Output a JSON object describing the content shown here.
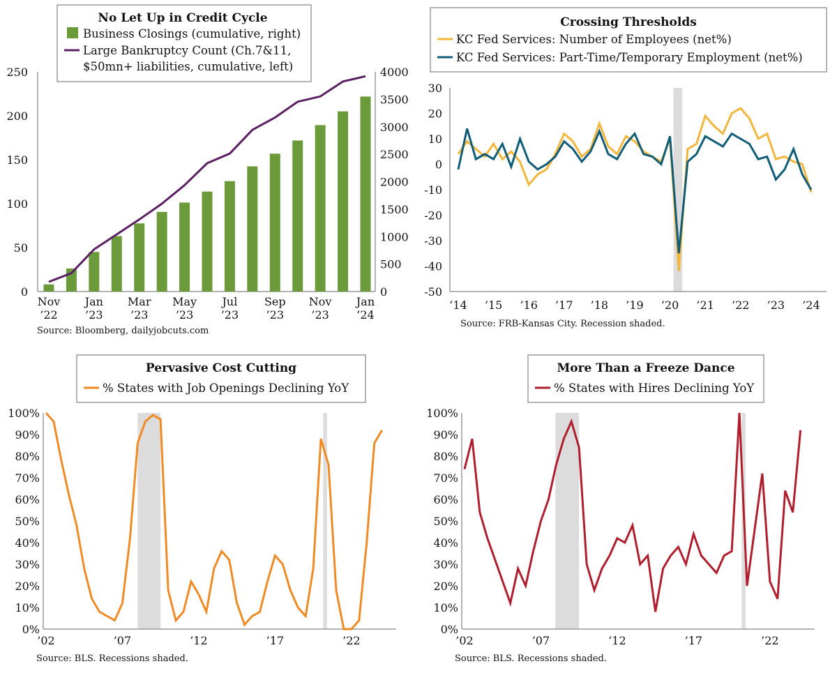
{
  "colors": {
    "green_bar": "#6a9a3a",
    "purple_line": "#5b1f63",
    "gold_line": "#f2b63c",
    "teal_line": "#0e5c78",
    "orange_line": "#f08a24",
    "crimson_line": "#b01e2e",
    "recession": "#dcdcdc",
    "axis": "#9a9a9a"
  },
  "charts": [
    {
      "title": "No Let Up in Credit Cycle",
      "source": "Source: Bloomberg, dailyjobcuts.com",
      "legend": [
        "Business Closings (cumulative, right)",
        "Large Bankruptcy Count (Ch.7&11,",
        "$50mn+ liabilities, cumulative, left)"
      ],
      "x_ticks_top": [
        "Nov",
        "Jan",
        "Mar",
        "May",
        "Jul",
        "Sep",
        "Nov",
        "Jan"
      ],
      "x_ticks_bottom": [
        "’22",
        "’23",
        "’23",
        "’23",
        "’23",
        "’23",
        "’23",
        "’24"
      ],
      "y_left_ticks": [
        "0",
        "50",
        "100",
        "150",
        "200",
        "250"
      ],
      "y_right_ticks": [
        "0",
        "500",
        "1000",
        "1500",
        "2000",
        "2500",
        "3000",
        "3500",
        "4000"
      ]
    },
    {
      "title": "Crossing Thresholds",
      "source": "Source: FRB-Kansas City. Recession shaded.",
      "legend": [
        "KC Fed Services: Number of Employees (net%)",
        "KC Fed Services: Part-Time/Temporary Employment (net%)"
      ],
      "x_ticks": [
        "’14",
        "’15",
        "’16",
        "’17",
        "’18",
        "’19",
        "’20",
        "’21",
        "’22",
        "’23",
        "’24"
      ],
      "y_ticks": [
        "30",
        "20",
        "10",
        "0",
        "-10",
        "-20",
        "-30",
        "-40",
        "-50"
      ]
    },
    {
      "title": "Pervasive Cost Cutting",
      "source": "Source: BLS. Recessions shaded.",
      "legend": [
        "% States with Job Openings Declining YoY"
      ],
      "x_ticks": [
        "’02",
        "’07",
        "’12",
        "’17",
        "’22"
      ],
      "y_ticks": [
        "100%",
        "90%",
        "80%",
        "70%",
        "60%",
        "50%",
        "40%",
        "30%",
        "20%",
        "10%",
        "0%"
      ]
    },
    {
      "title": "More Than a Freeze Dance",
      "source": "Source: BLS. Recessions shaded.",
      "legend": [
        "% States with Hires Declining YoY"
      ],
      "x_ticks": [
        "’02",
        "’07",
        "’12",
        "’17",
        "’22"
      ],
      "y_ticks": [
        "100%",
        "90%",
        "80%",
        "70%",
        "60%",
        "50%",
        "40%",
        "30%",
        "20%",
        "10%",
        "0%"
      ]
    }
  ],
  "chart_data": [
    {
      "type": "bar",
      "title": "No Let Up in Credit Cycle",
      "categories": [
        "Nov ’22",
        "Dec ’22",
        "Jan ’23",
        "Feb ’23",
        "Mar ’23",
        "Apr ’23",
        "May ’23",
        "Jun ’23",
        "Jul ’23",
        "Aug ’23",
        "Sep ’23",
        "Oct ’23",
        "Nov ’23",
        "Dec ’23",
        "Jan ’24"
      ],
      "series": [
        {
          "name": "Business Closings (cumulative, right)",
          "axis": "right",
          "values": [
            130,
            420,
            720,
            1010,
            1240,
            1450,
            1620,
            1820,
            2010,
            2280,
            2510,
            2750,
            3030,
            3280,
            3550
          ]
        },
        {
          "name": "Large Bankruptcy Count (Ch.7&11, $50mn+ liabilities, cumulative, left)",
          "axis": "left",
          "values": [
            11,
            21,
            48,
            65,
            82,
            100,
            121,
            146,
            157,
            184,
            198,
            216,
            222,
            239,
            245
          ]
        }
      ],
      "ylim_left": [
        0,
        250
      ],
      "ylim_right": [
        0,
        4000
      ]
    },
    {
      "type": "line",
      "title": "Crossing Thresholds",
      "x": [
        "2014",
        "2014.25",
        "2014.5",
        "2014.75",
        "2015",
        "2015.25",
        "2015.5",
        "2015.75",
        "2016",
        "2016.25",
        "2016.5",
        "2016.75",
        "2017",
        "2017.25",
        "2017.5",
        "2017.75",
        "2018",
        "2018.25",
        "2018.5",
        "2018.75",
        "2019",
        "2019.25",
        "2019.5",
        "2019.75",
        "2020",
        "2020.25",
        "2020.5",
        "2020.75",
        "2021",
        "2021.25",
        "2021.5",
        "2021.75",
        "2022",
        "2022.25",
        "2022.5",
        "2022.75",
        "2023",
        "2023.25",
        "2023.5",
        "2023.75",
        "2024"
      ],
      "series": [
        {
          "name": "KC Fed Services: Number of Employees (net%)",
          "values": [
            4,
            9,
            6,
            3,
            8,
            2,
            5,
            1,
            -8,
            -4,
            -2,
            4,
            12,
            9,
            3,
            6,
            16,
            7,
            4,
            11,
            9,
            5,
            3,
            1,
            10,
            -42,
            6,
            8,
            19,
            15,
            12,
            20,
            22,
            18,
            10,
            12,
            2,
            3,
            1,
            0,
            -11
          ]
        },
        {
          "name": "KC Fed Services: Part-Time/Temporary Employment (net%)",
          "values": [
            -2,
            14,
            2,
            4,
            2,
            8,
            -1,
            10,
            1,
            -2,
            0,
            3,
            9,
            6,
            1,
            5,
            13,
            4,
            2,
            8,
            12,
            4,
            3,
            0,
            11,
            -35,
            1,
            4,
            11,
            9,
            7,
            12,
            10,
            8,
            2,
            3,
            -6,
            -2,
            6,
            -4,
            -10
          ]
        }
      ],
      "ylim": [
        -50,
        30
      ],
      "recessions": [
        [
          2020.1,
          2020.35
        ]
      ]
    },
    {
      "type": "line",
      "title": "Pervasive Cost Cutting",
      "x": [
        "2002",
        "2002.5",
        "2003",
        "2003.5",
        "2004",
        "2004.5",
        "2005",
        "2005.5",
        "2006",
        "2006.5",
        "2007",
        "2007.5",
        "2008",
        "2008.5",
        "2009",
        "2009.5",
        "2010",
        "2010.5",
        "2011",
        "2011.5",
        "2012",
        "2012.5",
        "2013",
        "2013.5",
        "2014",
        "2014.5",
        "2015",
        "2015.5",
        "2016",
        "2016.5",
        "2017",
        "2017.5",
        "2018",
        "2018.5",
        "2019",
        "2019.5",
        "2020",
        "2020.5",
        "2021",
        "2021.5",
        "2022",
        "2022.5",
        "2023",
        "2023.5",
        "2024"
      ],
      "series": [
        {
          "name": "% States with Job Openings Declining YoY",
          "values": [
            100,
            96,
            78,
            62,
            48,
            28,
            14,
            8,
            6,
            4,
            12,
            42,
            86,
            96,
            99,
            97,
            18,
            4,
            8,
            22,
            16,
            8,
            28,
            36,
            32,
            12,
            2,
            6,
            8,
            22,
            34,
            30,
            18,
            10,
            6,
            28,
            88,
            76,
            18,
            0,
            0,
            4,
            40,
            86,
            92
          ]
        }
      ],
      "ylim": [
        0,
        100
      ],
      "recessions": [
        [
          2008.0,
          2009.5
        ],
        [
          2020.15,
          2020.4
        ]
      ]
    },
    {
      "type": "line",
      "title": "More Than a Freeze Dance",
      "x": [
        "2002",
        "2002.5",
        "2003",
        "2003.5",
        "2004",
        "2004.5",
        "2005",
        "2005.5",
        "2006",
        "2006.5",
        "2007",
        "2007.5",
        "2008",
        "2008.5",
        "2009",
        "2009.5",
        "2010",
        "2010.5",
        "2011",
        "2011.5",
        "2012",
        "2012.5",
        "2013",
        "2013.5",
        "2014",
        "2014.5",
        "2015",
        "2015.5",
        "2016",
        "2016.5",
        "2017",
        "2017.5",
        "2018",
        "2018.5",
        "2019",
        "2019.5",
        "2020",
        "2020.5",
        "2021",
        "2021.5",
        "2022",
        "2022.5",
        "2023",
        "2023.5",
        "2024"
      ],
      "series": [
        {
          "name": "% States with Hires Declining YoY",
          "values": [
            74,
            88,
            54,
            42,
            32,
            22,
            12,
            28,
            20,
            36,
            50,
            60,
            76,
            88,
            96,
            84,
            30,
            18,
            28,
            34,
            42,
            40,
            48,
            30,
            34,
            8,
            28,
            34,
            38,
            30,
            44,
            34,
            30,
            26,
            34,
            36,
            100,
            20,
            46,
            72,
            22,
            14,
            64,
            54,
            92
          ]
        }
      ],
      "ylim": [
        0,
        100
      ],
      "recessions": [
        [
          2007.95,
          2009.5
        ],
        [
          2020.15,
          2020.4
        ]
      ]
    }
  ]
}
